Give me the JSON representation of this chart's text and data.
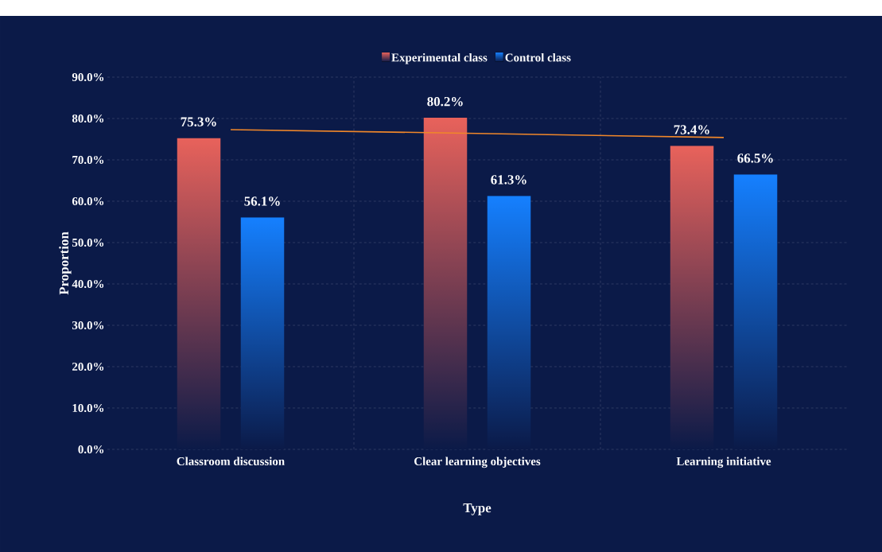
{
  "chart_data": {
    "type": "bar",
    "xlabel": "Type",
    "ylabel": "Proportion",
    "categories": [
      "Classroom discussion",
      "Clear learning objectives",
      "Learning initiative"
    ],
    "series": [
      {
        "name": "Experimental class",
        "color": "#e8625b",
        "values": [
          75.3,
          80.2,
          73.4
        ],
        "value_labels": [
          "75.3%",
          "80.2%",
          "73.4%"
        ]
      },
      {
        "name": "Control class",
        "color": "#1580ff",
        "values": [
          56.1,
          61.3,
          66.5
        ],
        "value_labels": [
          "56.1%",
          "61.3%",
          "66.5%"
        ]
      },
      {
        "type": "line",
        "color": "#f0872a",
        "values": [
          77.3,
          76.4,
          75.4
        ],
        "marker": "none",
        "line_style": "solid"
      }
    ],
    "ylim": [
      0,
      90
    ],
    "yticks": [
      {
        "value": 0,
        "label": "0.0%"
      },
      {
        "value": 10,
        "label": "10.0%"
      },
      {
        "value": 20,
        "label": "20.0%"
      },
      {
        "value": 30,
        "label": "30.0%"
      },
      {
        "value": 40,
        "label": "40.0%"
      },
      {
        "value": 50,
        "label": "50.0%"
      },
      {
        "value": 60,
        "label": "60.0%"
      },
      {
        "value": 70,
        "label": "70.0%"
      },
      {
        "value": 80,
        "label": "80.0%"
      },
      {
        "value": 90,
        "label": "90.0%"
      }
    ],
    "grid": true,
    "legend": "top"
  }
}
